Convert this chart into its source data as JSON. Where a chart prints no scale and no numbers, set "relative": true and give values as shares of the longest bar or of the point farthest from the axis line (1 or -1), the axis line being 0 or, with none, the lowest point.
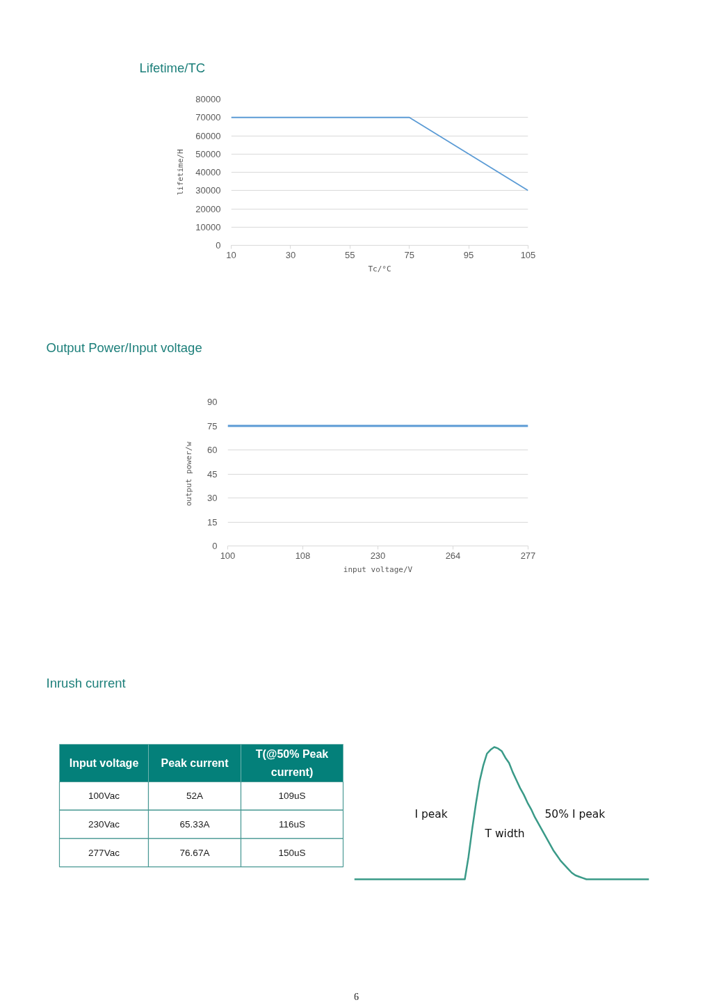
{
  "chart_data": [
    {
      "type": "line",
      "title": "Lifetime/TC",
      "xlabel": "Tc/°C",
      "ylabel": "lifetime/H",
      "categories": [
        "10",
        "30",
        "55",
        "75",
        "95",
        "105"
      ],
      "values": [
        70000,
        70000,
        70000,
        70000,
        50000,
        30000
      ],
      "color": "#5b9bd5",
      "ylim": [
        0,
        80000
      ],
      "yticks": [
        0,
        10000,
        20000,
        30000,
        40000,
        50000,
        60000,
        70000,
        80000
      ],
      "grid": "y"
    },
    {
      "type": "line",
      "title": "Output Power/Input voltage",
      "xlabel": "input voltage/V",
      "ylabel": "output power/w",
      "categories": [
        "100",
        "108",
        "230",
        "264",
        "277"
      ],
      "values": [
        75,
        75,
        75,
        75,
        75
      ],
      "color": "#5b9bd5",
      "ylim": [
        0,
        90
      ],
      "yticks": [
        0,
        15,
        30,
        45,
        60,
        75,
        90
      ],
      "grid": "y"
    },
    {
      "type": "other",
      "title": "Inrush current",
      "xlabel": "Input voltage",
      "categories": [
        "100Vac",
        "230Vac",
        "277Vac"
      ],
      "series": [
        {
          "name": "Peak current",
          "values": [
            52,
            65.33,
            76.67
          ],
          "value_labels": [
            "52A",
            "65.33A",
            "76.67A"
          ]
        },
        {
          "name": "T(@50% Peak current)",
          "values": [
            109,
            116,
            150
          ],
          "value_labels": [
            "109uS",
            "116uS",
            "150uS"
          ]
        }
      ]
    },
    {
      "type": "line",
      "relative": true,
      "color": "#3a9a88",
      "categories": [
        null,
        null,
        null,
        null,
        null,
        null,
        null,
        null,
        null,
        null,
        null,
        null,
        null,
        null,
        null,
        null,
        null,
        null,
        null,
        null,
        null,
        null,
        null,
        null,
        null,
        null,
        null,
        null,
        null,
        null,
        null,
        null,
        null,
        null,
        null,
        null,
        null,
        null,
        null,
        null,
        null,
        null,
        null,
        null,
        null,
        null,
        null,
        null,
        null,
        null,
        null,
        null,
        null,
        null,
        null,
        null,
        null,
        null,
        null,
        null,
        null,
        null,
        null,
        null,
        null,
        null,
        null,
        null,
        null,
        null,
        null,
        null,
        null,
        null,
        null,
        null,
        null,
        null,
        null,
        null,
        null
      ],
      "values": [
        0,
        0,
        0,
        0,
        0,
        0,
        0,
        0,
        0,
        0,
        0,
        0,
        0,
        0,
        0,
        0,
        0,
        0,
        0,
        0,
        0,
        0,
        0,
        0,
        0,
        0,
        0,
        0,
        0,
        0,
        0,
        0.17,
        0.38,
        0.57,
        0.74,
        0.86,
        0.95,
        0.98,
        1,
        0.99,
        0.97,
        0.92,
        0.88,
        0.81,
        0.75,
        0.69,
        0.64,
        0.58,
        0.53,
        0.47,
        0.42,
        0.37,
        0.32,
        0.27,
        0.22,
        0.18,
        0.14,
        0.11,
        0.08,
        0.05,
        0.03,
        0.02,
        0.01,
        0,
        0,
        0,
        0,
        0,
        0,
        0,
        0,
        0,
        0,
        0,
        0,
        0,
        0,
        0,
        0,
        0,
        0
      ],
      "annotations": [
        "I peak",
        "T width",
        "50% I peak",
        "6"
      ]
    }
  ]
}
